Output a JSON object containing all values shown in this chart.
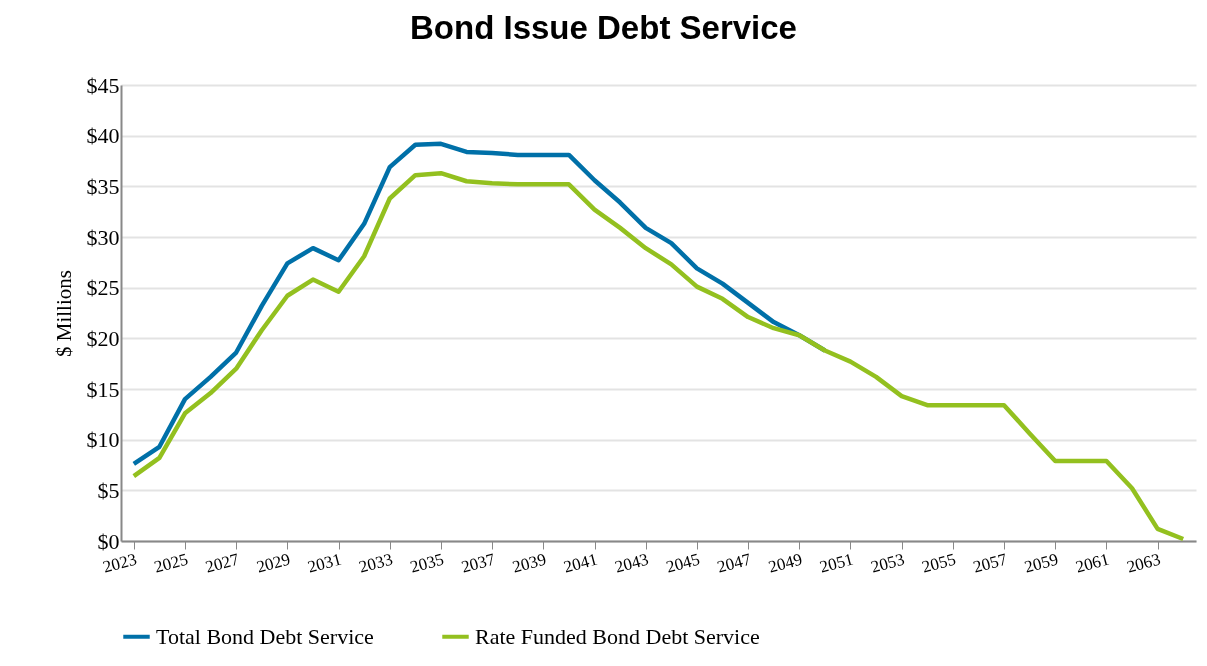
{
  "chart_data": {
    "type": "line",
    "title": "Bond Issue Debt Service",
    "ylabel": "$ Millions",
    "x": [
      2023,
      2024,
      2025,
      2026,
      2027,
      2028,
      2029,
      2030,
      2031,
      2032,
      2033,
      2034,
      2035,
      2036,
      2037,
      2038,
      2039,
      2040,
      2041,
      2042,
      2043,
      2044,
      2045,
      2046,
      2047,
      2048,
      2049,
      2050,
      2051,
      2052,
      2053,
      2054,
      2055,
      2056,
      2057,
      2058,
      2059,
      2060,
      2061,
      2062,
      2063,
      2064
    ],
    "series": [
      {
        "name": "Total Bond Debt Service",
        "color": "#0070a8",
        "values": [
          7.6,
          9.3,
          14.0,
          16.2,
          18.6,
          23.2,
          27.4,
          28.9,
          27.7,
          31.3,
          36.9,
          39.1,
          39.2,
          38.4,
          38.3,
          38.1,
          38.1,
          38.1,
          35.6,
          33.4,
          30.9,
          29.4,
          26.9,
          25.4,
          23.5,
          21.6,
          20.3,
          18.8,
          null,
          null,
          null,
          null,
          null,
          null,
          null,
          null,
          null,
          null,
          null,
          null,
          null,
          null
        ]
      },
      {
        "name": "Rate Funded Bond Debt Service",
        "color": "#93c01f",
        "values": [
          6.4,
          8.2,
          12.6,
          14.6,
          17.0,
          20.8,
          24.2,
          25.8,
          24.6,
          28.1,
          33.8,
          36.1,
          36.3,
          35.5,
          35.3,
          35.2,
          35.2,
          35.2,
          32.7,
          30.9,
          28.9,
          27.3,
          25.1,
          23.9,
          22.1,
          21.0,
          20.3,
          18.8,
          17.7,
          16.2,
          14.3,
          13.4,
          13.4,
          13.4,
          13.4,
          10.6,
          7.9,
          7.9,
          7.9,
          5.2,
          1.2,
          0.2
        ]
      }
    ],
    "xlim": [
      2022.5,
      2064.5
    ],
    "xticks": [
      2023,
      2025,
      2027,
      2029,
      2031,
      2033,
      2035,
      2037,
      2039,
      2041,
      2043,
      2045,
      2047,
      2049,
      2051,
      2053,
      2055,
      2057,
      2059,
      2061,
      2063
    ],
    "ylim": [
      0,
      45
    ],
    "yticks": [
      {
        "value": 0,
        "label": "$0"
      },
      {
        "value": 5,
        "label": "$5"
      },
      {
        "value": 10,
        "label": "$10"
      },
      {
        "value": 15,
        "label": "$15"
      },
      {
        "value": 20,
        "label": "$20"
      },
      {
        "value": 25,
        "label": "$25"
      },
      {
        "value": 30,
        "label": "$30"
      },
      {
        "value": 35,
        "label": "$35"
      },
      {
        "value": 40,
        "label": "$40"
      },
      {
        "value": 45,
        "label": "$45"
      }
    ],
    "grid": "y",
    "legend": "bottom",
    "marker": "none",
    "line_style": "solid"
  }
}
